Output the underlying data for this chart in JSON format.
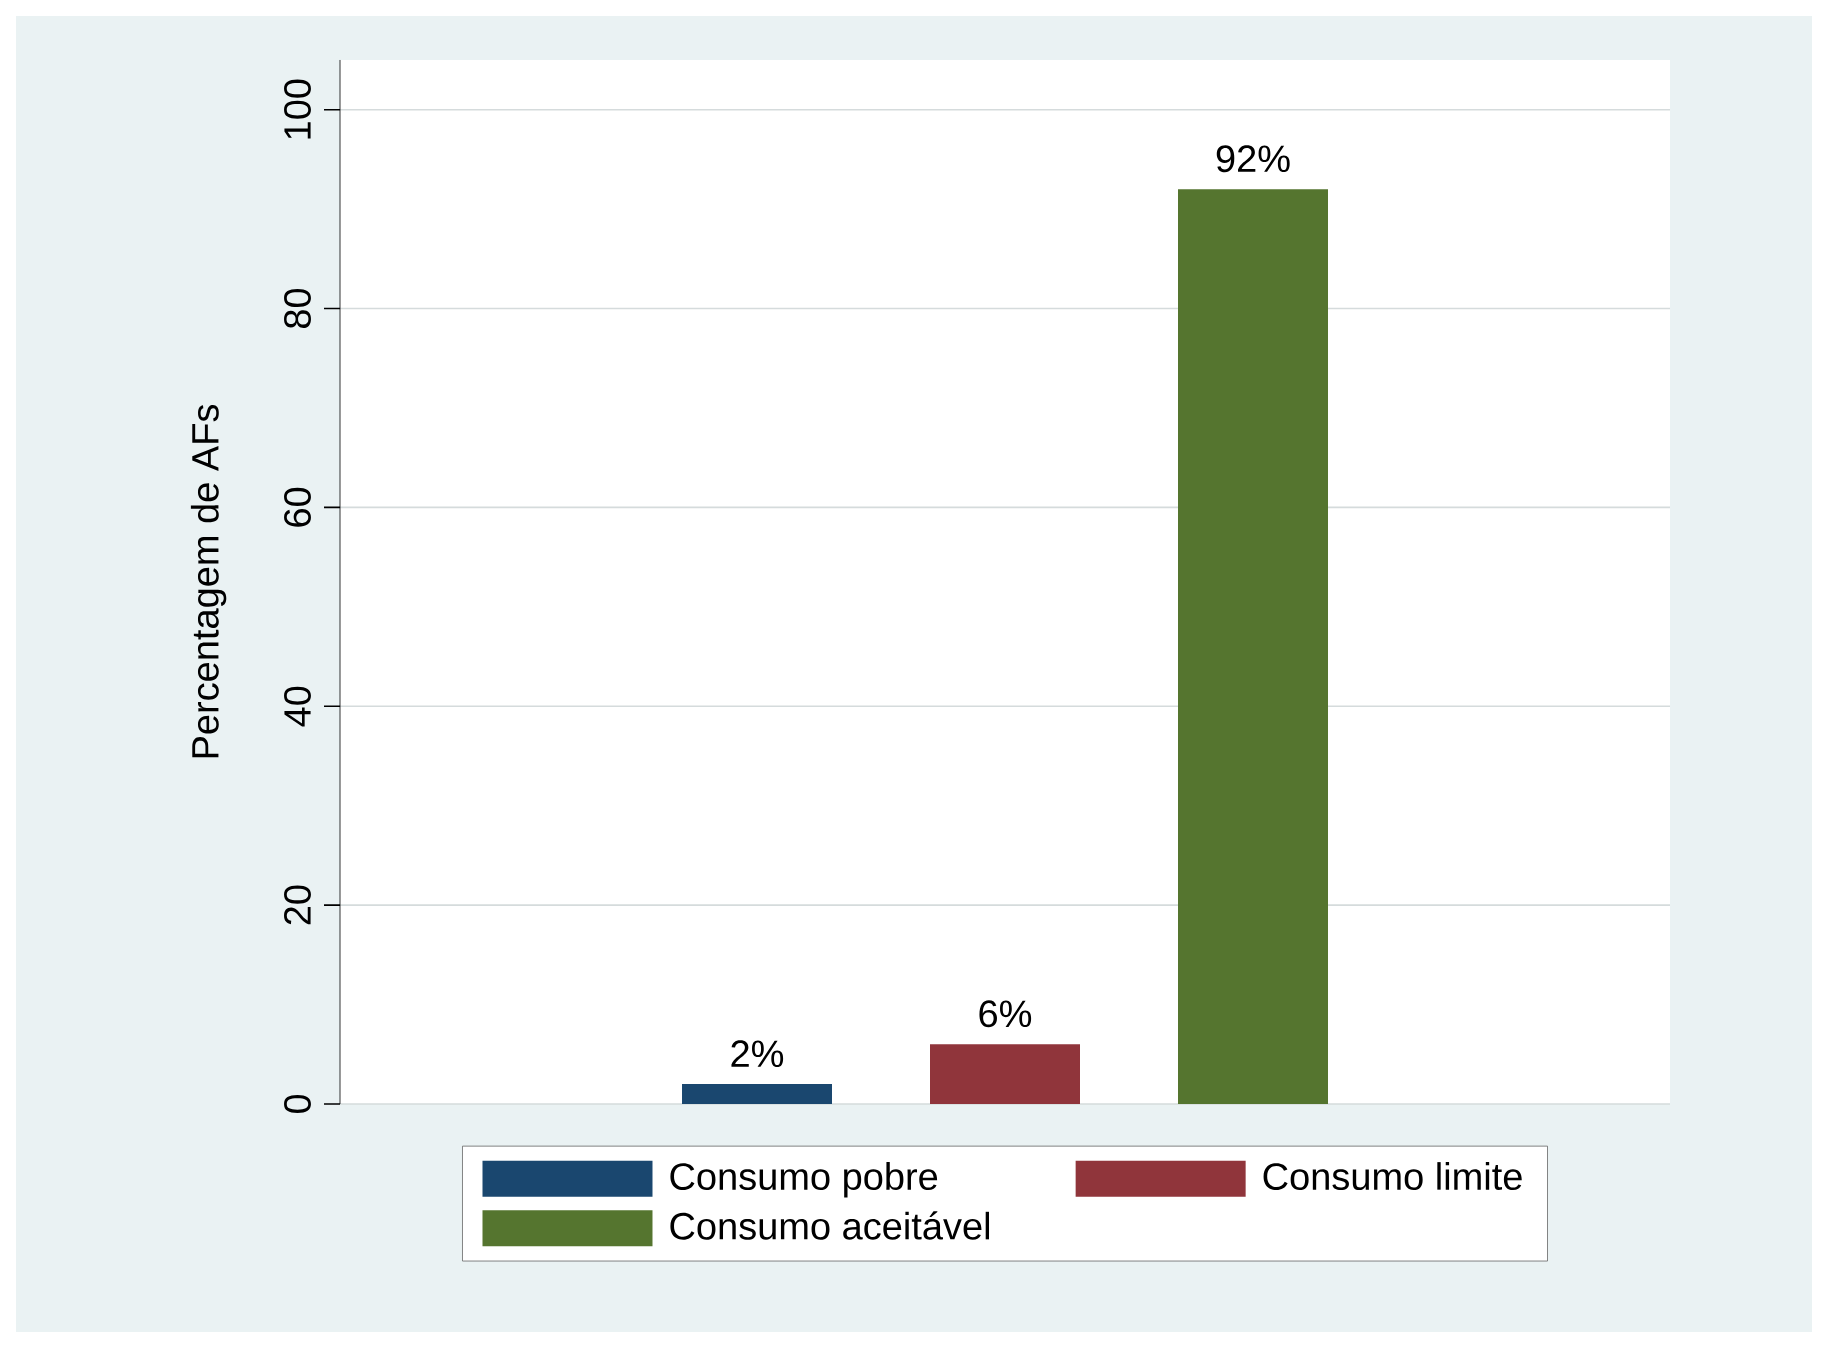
{
  "chart_data": {
    "type": "bar",
    "ylabel": "Percentagem de AFs",
    "categories": [
      null
    ],
    "series": [
      {
        "name": "Consumo pobre",
        "color": "#1a476f",
        "values": [
          2
        ],
        "value_labels": [
          "2%"
        ]
      },
      {
        "name": "Consumo limite",
        "color": "#90353b",
        "values": [
          6
        ],
        "value_labels": [
          "6%"
        ]
      },
      {
        "name": "Consumo aceitável",
        "color": "#55752f",
        "values": [
          92
        ],
        "value_labels": [
          "92%"
        ]
      }
    ],
    "ylim": [
      0,
      105
    ],
    "yticks": [
      0,
      20,
      40,
      60,
      80,
      100
    ],
    "grid": "y",
    "legend": "bottom",
    "tick_labels": "y"
  }
}
